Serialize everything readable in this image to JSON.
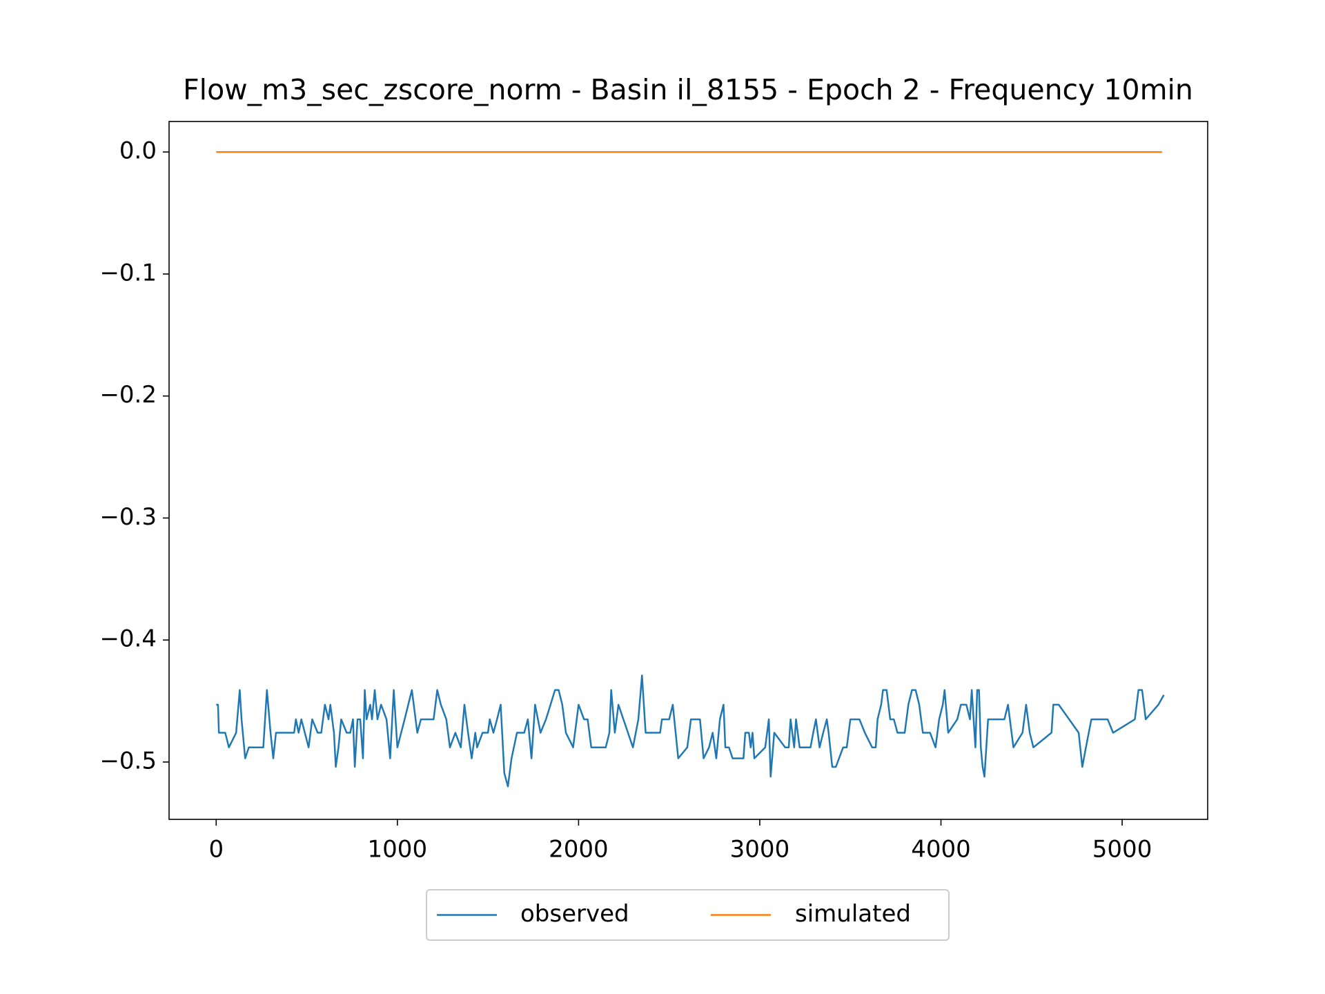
{
  "chart_data": {
    "type": "line",
    "title": "Flow_m3_sec_zscore_norm - Basin il_8155 - Epoch 2 - Frequency 10min",
    "xlim": [
      -260,
      5472
    ],
    "xticks": [
      0,
      1000,
      2000,
      3000,
      4000,
      5000
    ],
    "ylim": [
      -0.547,
      0.025
    ],
    "yticks": [
      {
        "value": -0.5,
        "label": "−0.5"
      },
      {
        "value": -0.4,
        "label": "−0.4"
      },
      {
        "value": -0.3,
        "label": "−0.3"
      },
      {
        "value": -0.2,
        "label": "−0.2"
      },
      {
        "value": -0.1,
        "label": "−0.1"
      },
      {
        "value": 0,
        "label": "0.0"
      }
    ],
    "grid": false,
    "legend": "lower center outside",
    "series": [
      {
        "name": "observed",
        "color": "#1f77b4",
        "x": [
          0,
          10,
          15,
          50,
          70,
          110,
          130,
          140,
          160,
          180,
          260,
          280,
          300,
          315,
          330,
          430,
          440,
          455,
          470,
          510,
          530,
          560,
          580,
          600,
          620,
          630,
          650,
          660,
          675,
          690,
          720,
          740,
          755,
          765,
          780,
          795,
          810,
          820,
          830,
          850,
          860,
          875,
          890,
          910,
          940,
          960,
          980,
          990,
          1000,
          1040,
          1060,
          1080,
          1110,
          1130,
          1200,
          1220,
          1240,
          1270,
          1290,
          1320,
          1350,
          1370,
          1390,
          1410,
          1430,
          1440,
          1470,
          1500,
          1510,
          1530,
          1550,
          1570,
          1590,
          1610,
          1630,
          1660,
          1700,
          1720,
          1740,
          1760,
          1790,
          1820,
          1870,
          1890,
          1910,
          1930,
          1970,
          2000,
          2030,
          2050,
          2070,
          2150,
          2170,
          2180,
          2200,
          2220,
          2300,
          2330,
          2350,
          2370,
          2450,
          2460,
          2480,
          2500,
          2520,
          2550,
          2600,
          2620,
          2670,
          2690,
          2720,
          2740,
          2760,
          2780,
          2800,
          2810,
          2830,
          2850,
          2910,
          2920,
          2940,
          2950,
          2960,
          2970,
          3030,
          3050,
          3060,
          3080,
          3140,
          3160,
          3170,
          3190,
          3200,
          3220,
          3280,
          3295,
          3310,
          3330,
          3350,
          3370,
          3380,
          3400,
          3420,
          3460,
          3480,
          3500,
          3550,
          3580,
          3620,
          3640,
          3650,
          3670,
          3680,
          3700,
          3720,
          3740,
          3760,
          3800,
          3820,
          3840,
          3860,
          3880,
          3900,
          3940,
          3970,
          3990,
          4010,
          4020,
          4040,
          4090,
          4110,
          4140,
          4160,
          4170,
          4190,
          4200,
          4210,
          4220,
          4230,
          4240,
          4260,
          4350,
          4370,
          4400,
          4450,
          4470,
          4490,
          4510,
          4610,
          4620,
          4650,
          4760,
          4780,
          4800,
          4830,
          4920,
          4950,
          5070,
          5090,
          5110,
          5130,
          5200,
          5230
        ],
        "values": [
          -0.453,
          -0.453,
          -0.476,
          -0.476,
          -0.488,
          -0.476,
          -0.441,
          -0.465,
          -0.497,
          -0.488,
          -0.488,
          -0.441,
          -0.476,
          -0.497,
          -0.476,
          -0.476,
          -0.465,
          -0.476,
          -0.465,
          -0.488,
          -0.465,
          -0.476,
          -0.476,
          -0.453,
          -0.465,
          -0.453,
          -0.476,
          -0.504,
          -0.488,
          -0.465,
          -0.476,
          -0.476,
          -0.465,
          -0.504,
          -0.465,
          -0.465,
          -0.497,
          -0.441,
          -0.465,
          -0.453,
          -0.465,
          -0.441,
          -0.465,
          -0.453,
          -0.465,
          -0.497,
          -0.441,
          -0.465,
          -0.488,
          -0.465,
          -0.453,
          -0.441,
          -0.476,
          -0.465,
          -0.465,
          -0.441,
          -0.453,
          -0.465,
          -0.488,
          -0.476,
          -0.488,
          -0.453,
          -0.476,
          -0.497,
          -0.476,
          -0.488,
          -0.476,
          -0.476,
          -0.465,
          -0.476,
          -0.465,
          -0.453,
          -0.509,
          -0.52,
          -0.497,
          -0.476,
          -0.476,
          -0.465,
          -0.497,
          -0.453,
          -0.476,
          -0.465,
          -0.441,
          -0.441,
          -0.453,
          -0.476,
          -0.488,
          -0.453,
          -0.465,
          -0.465,
          -0.488,
          -0.488,
          -0.476,
          -0.441,
          -0.476,
          -0.453,
          -0.488,
          -0.465,
          -0.429,
          -0.476,
          -0.476,
          -0.465,
          -0.465,
          -0.465,
          -0.453,
          -0.497,
          -0.488,
          -0.465,
          -0.465,
          -0.497,
          -0.488,
          -0.476,
          -0.497,
          -0.465,
          -0.453,
          -0.488,
          -0.488,
          -0.497,
          -0.497,
          -0.476,
          -0.476,
          -0.488,
          -0.476,
          -0.497,
          -0.488,
          -0.465,
          -0.512,
          -0.476,
          -0.488,
          -0.488,
          -0.465,
          -0.488,
          -0.465,
          -0.488,
          -0.488,
          -0.476,
          -0.465,
          -0.488,
          -0.476,
          -0.465,
          -0.476,
          -0.504,
          -0.504,
          -0.488,
          -0.488,
          -0.465,
          -0.465,
          -0.476,
          -0.488,
          -0.488,
          -0.465,
          -0.453,
          -0.441,
          -0.441,
          -0.465,
          -0.465,
          -0.476,
          -0.476,
          -0.453,
          -0.441,
          -0.441,
          -0.453,
          -0.476,
          -0.476,
          -0.488,
          -0.465,
          -0.453,
          -0.441,
          -0.476,
          -0.465,
          -0.453,
          -0.453,
          -0.465,
          -0.441,
          -0.488,
          -0.441,
          -0.441,
          -0.488,
          -0.504,
          -0.512,
          -0.465,
          -0.465,
          -0.453,
          -0.488,
          -0.476,
          -0.453,
          -0.476,
          -0.488,
          -0.476,
          -0.453,
          -0.453,
          -0.476,
          -0.504,
          -0.488,
          -0.465,
          -0.465,
          -0.476,
          -0.465,
          -0.441,
          -0.441,
          -0.465,
          -0.453,
          -0.445
        ]
      },
      {
        "name": "simulated",
        "color": "#ff7f0e",
        "x": [
          0,
          5220
        ],
        "values": [
          0,
          0
        ]
      }
    ]
  }
}
